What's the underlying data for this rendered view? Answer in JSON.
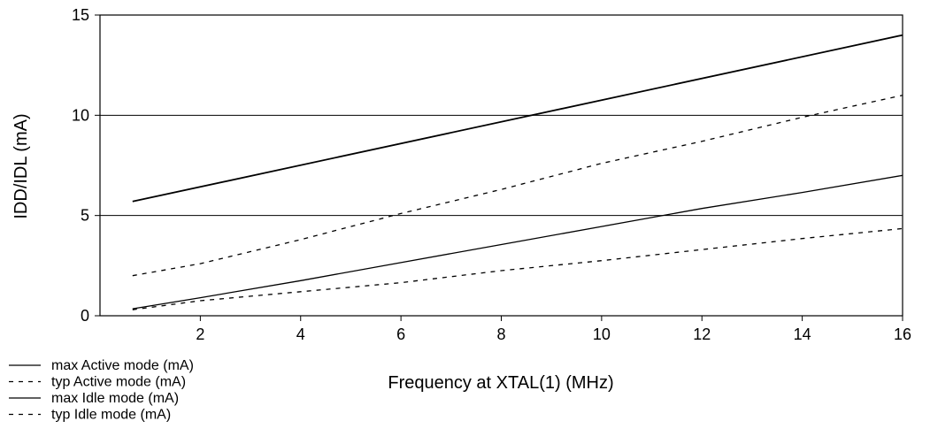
{
  "chart_data": {
    "type": "line",
    "title": "",
    "xlabel": "Frequency at XTAL(1) (MHz)",
    "ylabel": "IDD/IDL (mA)",
    "xlim": [
      0,
      16
    ],
    "ylim": [
      0,
      15
    ],
    "xticks": [
      2,
      4,
      6,
      8,
      10,
      12,
      14,
      16
    ],
    "yticks": [
      0,
      5,
      10,
      15
    ],
    "xtick_labels": [
      "2",
      "4",
      "6",
      "8",
      "10",
      "12",
      "14",
      "16"
    ],
    "ytick_labels": [
      "0",
      "5",
      "10",
      "15"
    ],
    "horizontal_gridlines": [
      5,
      10
    ],
    "legend_position": "bottom-left",
    "series": [
      {
        "name": "max Active mode (mA)",
        "style": "solid",
        "x": [
          0.65,
          16
        ],
        "y": [
          5.7,
          14.0
        ]
      },
      {
        "name": "typ Active mode (mA)",
        "style": "dashed",
        "x": [
          0.65,
          2,
          4,
          6,
          8,
          10,
          12,
          14,
          16
        ],
        "y": [
          2.0,
          2.6,
          3.8,
          5.1,
          6.3,
          7.6,
          8.7,
          9.9,
          11.0
        ]
      },
      {
        "name": "max Idle mode (mA)",
        "style": "solid",
        "x": [
          0.65,
          2,
          4,
          6,
          8,
          10,
          12,
          14,
          16
        ],
        "y": [
          0.35,
          0.9,
          1.75,
          2.65,
          3.55,
          4.45,
          5.35,
          6.15,
          7.0
        ]
      },
      {
        "name": "typ Idle mode (mA)",
        "style": "dashed",
        "x": [
          0.65,
          2,
          4,
          6,
          8,
          10,
          12,
          14,
          16
        ],
        "y": [
          0.3,
          0.75,
          1.2,
          1.65,
          2.25,
          2.75,
          3.3,
          3.85,
          4.35
        ]
      }
    ]
  }
}
